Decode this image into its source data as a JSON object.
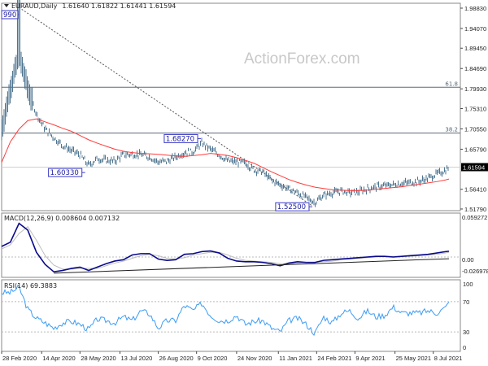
{
  "header": {
    "symbol": "EURAUD,Daily",
    "ohlc": "1.61640 1.61822 1.61441 1.61594",
    "watermark": "ActionForex.com"
  },
  "colors": {
    "bars": "#4f7590",
    "ma": "#ff3b3b",
    "macd": "#0a0a8c",
    "signal": "#bdbdbd",
    "rsi": "#3c9cf5",
    "label_border": "#3a3ac8",
    "fib": "#5a6a78"
  },
  "chart_data": [
    {
      "type": "ohlc",
      "title": "EURAUD,Daily",
      "price_ticks": [
        "1.98830",
        "1.94070",
        "1.89450",
        "1.84690",
        "1.79930",
        "1.75310",
        "1.70550",
        "1.65790",
        "1.56410",
        "1.51790"
      ],
      "last_price": "1.61594",
      "ylim": [
        1.5179,
        1.9883
      ],
      "x_ticks": [
        "28 Feb 2020",
        "14 Apr 2020",
        "28 May 2020",
        "13 Jul 2020",
        "26 Aug 2020",
        "9 Oct 2020",
        "24 Nov 2020",
        "11 Jan 2021",
        "24 Feb 2021",
        "9 Apr 2021",
        "25 May 2021",
        "8 Jul 2021"
      ],
      "x_tick_dates": [
        "2020-02-28",
        "2020-04-14",
        "2020-05-28",
        "2020-07-13",
        "2020-08-26",
        "2020-10-09",
        "2020-11-24",
        "2021-01-11",
        "2021-02-24",
        "2021-04-09",
        "2021-05-25",
        "2021-07-08"
      ],
      "dates": [
        "2020-02-28",
        "2020-03-09",
        "2020-03-19",
        "2020-03-29",
        "2020-04-08",
        "2020-04-18",
        "2020-04-28",
        "2020-05-08",
        "2020-05-18",
        "2020-05-28",
        "2020-06-07",
        "2020-06-17",
        "2020-06-27",
        "2020-07-07",
        "2020-07-17",
        "2020-07-27",
        "2020-08-06",
        "2020-08-16",
        "2020-08-26",
        "2020-09-05",
        "2020-09-15",
        "2020-09-25",
        "2020-10-05",
        "2020-10-15",
        "2020-10-25",
        "2020-11-04",
        "2020-11-14",
        "2020-11-24",
        "2020-12-04",
        "2020-12-14",
        "2020-12-24",
        "2021-01-03",
        "2021-01-13",
        "2021-01-23",
        "2021-02-02",
        "2021-02-12",
        "2021-02-22",
        "2021-03-04",
        "2021-03-14",
        "2021-03-24",
        "2021-04-03",
        "2021-04-13",
        "2021-04-23",
        "2021-05-03",
        "2021-05-13",
        "2021-05-23",
        "2021-06-02",
        "2021-06-12",
        "2021-06-22",
        "2021-07-02",
        "2021-07-12",
        "2021-07-22",
        "2021-07-26"
      ],
      "close": [
        1.702,
        1.8,
        1.88,
        1.8,
        1.741,
        1.705,
        1.685,
        1.667,
        1.655,
        1.645,
        1.62,
        1.636,
        1.632,
        1.63,
        1.645,
        1.646,
        1.645,
        1.64,
        1.628,
        1.63,
        1.64,
        1.65,
        1.652,
        1.672,
        1.658,
        1.645,
        1.63,
        1.628,
        1.625,
        1.61,
        1.605,
        1.585,
        1.575,
        1.565,
        1.556,
        1.545,
        1.533,
        1.55,
        1.556,
        1.56,
        1.556,
        1.558,
        1.565,
        1.57,
        1.572,
        1.575,
        1.578,
        1.58,
        1.583,
        1.59,
        1.6,
        1.608,
        1.61594
      ],
      "moving_average": [
        1.627,
        1.675,
        1.705,
        1.725,
        1.729,
        1.722,
        1.715,
        1.707,
        1.7,
        1.69,
        1.68,
        1.672,
        1.665,
        1.658,
        1.653,
        1.65,
        1.648,
        1.647,
        1.646,
        1.644,
        1.642,
        1.641,
        1.643,
        1.645,
        1.648,
        1.646,
        1.643,
        1.638,
        1.632,
        1.625,
        1.615,
        1.605,
        1.596,
        1.587,
        1.58,
        1.574,
        1.569,
        1.566,
        1.563,
        1.562,
        1.561,
        1.561,
        1.562,
        1.564,
        1.566,
        1.568,
        1.57,
        1.573,
        1.576,
        1.579,
        1.582,
        1.586,
        1.588
      ],
      "annotations": [
        {
          "label": "990",
          "price": 1.9899,
          "date": "2020-03-19"
        },
        {
          "label": "1.60330",
          "price": 1.6033,
          "date": "2020-06-03"
        },
        {
          "label": "1.68270",
          "price": 1.6827,
          "date": "2020-10-14"
        },
        {
          "label": "1.52500",
          "price": 1.525,
          "date": "2021-02-19"
        }
      ],
      "fibonacci": [
        {
          "label": "61.8",
          "price": 1.803
        },
        {
          "label": "38.2",
          "price": 1.6956
        }
      ],
      "trendline": {
        "from": {
          "date": "2020-03-19",
          "price": 1.9899
        },
        "to": {
          "date": "2021-02-19",
          "price": 1.525
        },
        "style": "dotted"
      }
    },
    {
      "type": "line",
      "title": "MACD(12,26,9) 0.008604 0.007132",
      "ticks": [
        "0.059272",
        "0.00",
        "-0.026978"
      ],
      "ylim": [
        -0.026978,
        0.059272
      ],
      "macd": [
        0.0157,
        0.022,
        0.05,
        0.04,
        0.007,
        -0.011,
        -0.022,
        -0.02,
        -0.017,
        -0.015,
        -0.02,
        -0.015,
        -0.01,
        -0.006,
        -0.004,
        0.003,
        0.005,
        0.005,
        -0.003,
        -0.005,
        -0.004,
        0.004,
        0.005,
        0.008,
        0.009,
        0.006,
        -0.002,
        -0.006,
        -0.007,
        -0.007,
        -0.008,
        -0.01,
        -0.013,
        -0.009,
        -0.007,
        -0.008,
        -0.008,
        -0.005,
        -0.004,
        -0.003,
        -0.002,
        -0.001,
        0.0,
        0.001,
        0.001,
        0.0,
        0.001,
        0.002,
        0.003,
        0.004,
        0.006,
        0.008,
        0.008604
      ],
      "signal": [
        0.012,
        0.018,
        0.035,
        0.045,
        0.025,
        0.002,
        -0.012,
        -0.018,
        -0.018,
        -0.017,
        -0.017,
        -0.017,
        -0.013,
        -0.009,
        -0.006,
        -0.002,
        0.002,
        0.004,
        0.002,
        -0.002,
        -0.003,
        -0.001,
        0.003,
        0.005,
        0.007,
        0.007,
        0.003,
        -0.002,
        -0.005,
        -0.006,
        -0.007,
        -0.008,
        -0.01,
        -0.01,
        -0.009,
        -0.008,
        -0.008,
        -0.007,
        -0.006,
        -0.004,
        -0.003,
        -0.002,
        -0.001,
        0.0,
        0.001,
        0.001,
        0.001,
        0.001,
        0.002,
        0.003,
        0.004,
        0.006,
        0.007132
      ],
      "trendline": {
        "from": {
          "date": "2020-04-28",
          "value": -0.024
        },
        "to": {
          "date": "2021-07-26",
          "value": -0.0025
        }
      }
    },
    {
      "type": "line",
      "title": "RSI(14) 69.3883",
      "ticks": [
        "100",
        "70",
        "30",
        "0"
      ],
      "ylim": [
        0,
        100
      ],
      "levels": [
        70,
        30
      ],
      "rsi": [
        82,
        82,
        89,
        60,
        48,
        42,
        35,
        42,
        44,
        40,
        33,
        47,
        45,
        42,
        50,
        45,
        58,
        54,
        35,
        45,
        45,
        65,
        58,
        68,
        52,
        45,
        45,
        52,
        40,
        44,
        45,
        35,
        30,
        45,
        48,
        40,
        28,
        50,
        42,
        55,
        58,
        48,
        58,
        50,
        52,
        63,
        55,
        55,
        55,
        58,
        55,
        62,
        69.3883
      ]
    }
  ]
}
